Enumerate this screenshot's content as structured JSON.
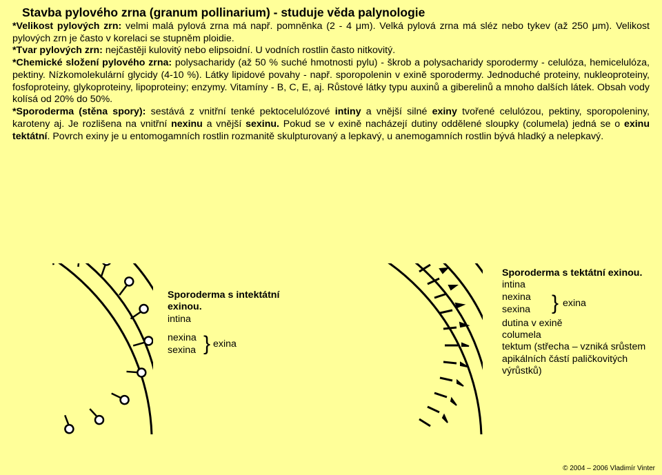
{
  "background_color": "#ffff99",
  "title": "Stavba pylového zrna (granum pollinarium) - studuje věda palynologie",
  "paragraph_html": "<span class='b'>*Velikost pylových zrn:</span> velmi malá pylová zrna má např. pomněnka (2 - 4 μm). Velká pylová zrna má sléz nebo tykev (až 250 μm). Velikost pylových zrn je často v korelaci se stupněm ploidie.<br><span class='b'>*Tvar pylových zrn:</span> nejčastěji kulovitý nebo elipsoidní. U vodních rostlin často nitkovitý.<br><span class='b'>*Chemické složení pylového zrna:</span> polysacharidy (až 50 % suché hmotnosti pylu) - škrob a polysacharidy sporodermy - celulóza, hemicelulóza, pektiny. Nízkomolekulární glycidy (4-10 %). Látky lipidové povahy - např. sporopolenin v exině sporodermy. Jednoduché proteiny, nukleoproteiny, fosfoproteiny, glykoproteiny, lipoproteiny; enzymy. Vitamíny - B, C, E, aj. Růstové látky typu auxinů a giberelinů a mnoho dalších látek. Obsah vody kolísá od 20% do 50%.<br><span class='b'>*Sporoderma (stěna spory):</span> sestává z vnitřní tenké pektocelulózové <span class='b'>intiny</span> a vnější silné <span class='b'>exiny</span> tvořené celulózou, pektiny, sporopoleniny, karoteny aj. Je rozlišena na vnitřní <span class='b'>nexinu</span> a vnější <span class='b'>sexinu.</span> Pokud se v exině nacházejí dutiny oddělené sloupky (columela) jedná se o <span class='b'>exinu tektátní</span>. Povrch exiny je u entomogamních rostlin rozmanitě skulpturovaný a lepkavý, u anemogamních rostlin bývá hladký a nelepkavý.",
  "label1": {
    "title": "Sporoderma s intektátní exinou.",
    "intina": "intina",
    "nexina": "nexina",
    "sexina": "sexina",
    "exina": "exina"
  },
  "label2": {
    "title": "Sporoderma s tektátní exinou.",
    "intina": "intina",
    "nexina": "nexina",
    "sexina": "sexina",
    "exina": "exina",
    "dutina": "dutina v exině",
    "columela": "columela",
    "tektum": "tektum (střecha – vzniká srůstem apikálních částí paličkovitých výrůstků)"
  },
  "footer": "© 2004 – 2006 Vladimír Vinter",
  "diagram_stroke": "#000000",
  "diagram_fill": "#ffffff"
}
